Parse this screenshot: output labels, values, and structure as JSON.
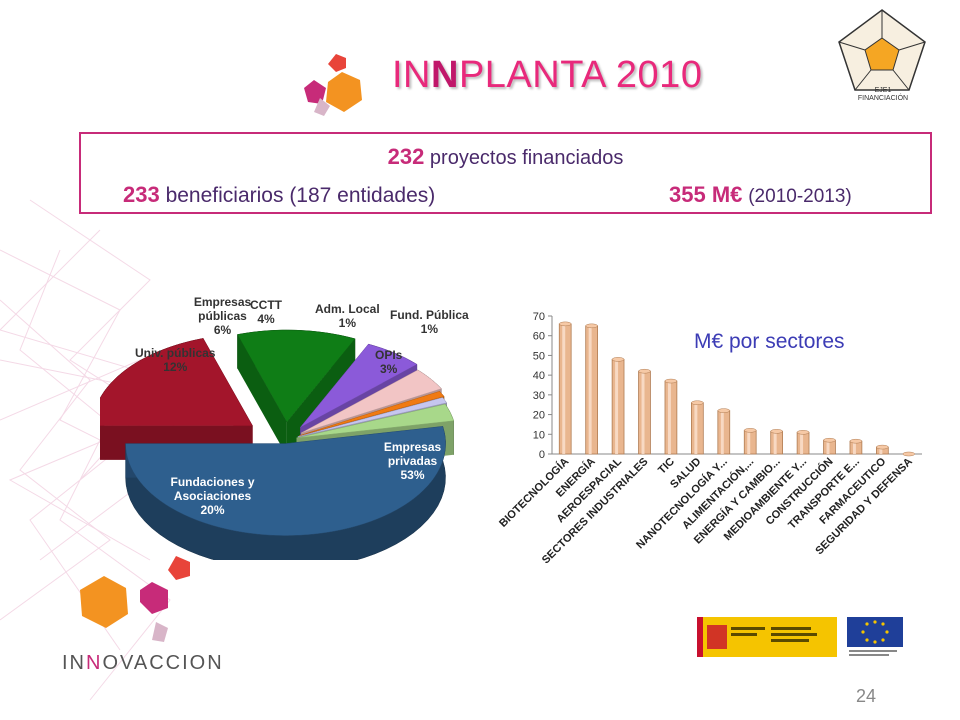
{
  "header": {
    "title_pre": "IN",
    "title_bold": "N",
    "title_post": "PLANTA 2010",
    "eje_line1": "EJE1",
    "eje_line2": "FINANCIACIÓN"
  },
  "summary": {
    "proyectos_num": "232",
    "proyectos_text": "proyectos financiados",
    "beneficiarios_num": "233",
    "beneficiarios_text": "beneficiarios",
    "entidades_text": "(187 entidades)",
    "importe_num": "355 M€",
    "importe_period": "(2010-2013)"
  },
  "chart_data": [
    {
      "type": "pie",
      "slices": [
        {
          "label": "Empresas privadas",
          "value": 53,
          "text": "53%",
          "color": "#2e5f8e"
        },
        {
          "label": "Fundaciones y Asociaciones",
          "value": 20,
          "text": "20%",
          "color": "#a3152b"
        },
        {
          "label": "Univ. públicas",
          "value": 12,
          "text": "12%",
          "color": "#0f7d16"
        },
        {
          "label": "Empresas públicas",
          "value": 6,
          "text": "6%",
          "color": "#8b5ad9"
        },
        {
          "label": "CCTT",
          "value": 4,
          "text": "4%",
          "color": "#f2c5c5"
        },
        {
          "label": "Adm. Local",
          "value": 1,
          "text": "1%",
          "color": "#f07a13"
        },
        {
          "label": "Fund. Pública",
          "value": 1,
          "text": "1%",
          "color": "#c6c6ef"
        },
        {
          "label": "OPIs",
          "value": 3,
          "text": "3%",
          "color": "#a8d88a"
        }
      ]
    },
    {
      "type": "bar",
      "title": "M€ por sectores",
      "categories": [
        "BIOTECNOLOGÍA",
        "ENERGÍA",
        "AEROESPACIAL",
        "SECTORES INDUSTRIALES",
        "TIC",
        "SALUD",
        "NANOTECNOLOGÍA Y...",
        "ALIMENTACIÓN,...",
        "ENERGÍA Y CAMBIO...",
        "MEDIOAMBIENTE Y...",
        "CONSTRUCCIÓN",
        "TRANSPORTE E...",
        "FARMACEUTICO",
        "SEGURIDAD Y DEFENSA"
      ],
      "values": [
        66,
        65,
        48,
        42,
        37,
        26,
        22,
        12,
        11.5,
        11,
        7,
        6.5,
        3.5,
        0
      ],
      "ylim": [
        0,
        70
      ],
      "yticks": [
        0,
        10,
        20,
        30,
        40,
        50,
        60,
        70
      ],
      "bar_color": "#e9b68f"
    }
  ],
  "footer": {
    "brand_pre": "IN",
    "brand_bold": "N",
    "brand_post": "OVACCION",
    "page_number": "24"
  },
  "colors": {
    "accent": "#c72b79",
    "text_dark": "#4a2a6b",
    "caption_blue": "#3c3cb5"
  }
}
